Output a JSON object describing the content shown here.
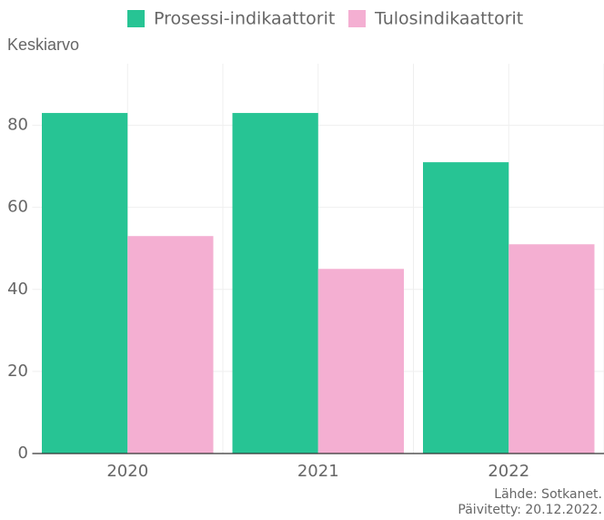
{
  "chart_data": {
    "type": "bar",
    "y_label": "Keskiarvo",
    "categories": [
      "2020",
      "2021",
      "2022"
    ],
    "series": [
      {
        "name": "Prosessi-indikaattorit",
        "color": "#27c494",
        "values": [
          83,
          83,
          71
        ]
      },
      {
        "name": "Tulosindikaattorit",
        "color": "#f4afd2",
        "values": [
          53,
          45,
          51
        ]
      }
    ],
    "ylim": [
      0,
      95
    ],
    "yticks": [
      0,
      20,
      40,
      60,
      80
    ],
    "grid": true,
    "legend": "top",
    "source": "Lähde: Sotkanet.",
    "updated": "Päivitetty: 20.12.2022."
  }
}
